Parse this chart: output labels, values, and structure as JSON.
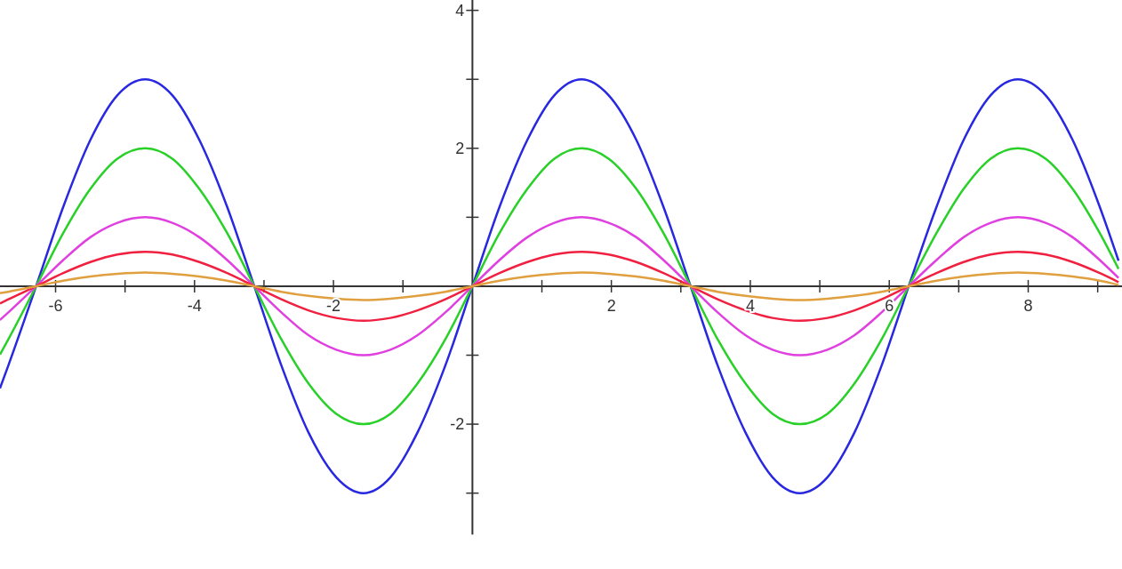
{
  "chart_data": {
    "type": "line",
    "x": [
      -6.8,
      -6.68,
      -6.28,
      -5.89,
      -5.5,
      -5.11,
      -4.71,
      -4.32,
      -3.93,
      -3.53,
      -3.14,
      -2.75,
      -2.36,
      -1.96,
      -1.57,
      -1.18,
      -0.79,
      -0.39,
      0,
      0.39,
      0.79,
      1.18,
      1.57,
      1.96,
      2.36,
      2.75,
      3.14,
      3.53,
      3.93,
      4.32,
      4.71,
      5.11,
      5.5,
      5.89,
      6.28,
      6.68,
      7.07,
      7.46,
      7.85,
      8.25,
      8.64,
      9.03,
      9.3
    ],
    "series": [
      {
        "color": "#2828e0",
        "values": [
          -1.48,
          -1.15,
          0,
          1.15,
          2.12,
          2.77,
          3,
          2.77,
          2.12,
          1.15,
          0,
          -1.15,
          -2.12,
          -2.77,
          -3,
          -2.77,
          -2.12,
          -1.15,
          0,
          1.15,
          2.12,
          2.77,
          3,
          2.77,
          2.12,
          1.15,
          0,
          -1.15,
          -2.12,
          -2.77,
          -3,
          -2.77,
          -2.12,
          -1.15,
          0,
          1.15,
          2.12,
          2.77,
          3,
          2.77,
          2.12,
          1.15,
          0.37
        ]
      },
      {
        "color": "#28d028",
        "values": [
          -0.99,
          -0.77,
          0,
          0.77,
          1.41,
          1.85,
          2,
          1.85,
          1.41,
          0.77,
          0,
          -0.77,
          -1.41,
          -1.85,
          -2,
          -1.85,
          -1.41,
          -0.77,
          0,
          0.77,
          1.41,
          1.85,
          2,
          1.85,
          1.41,
          0.77,
          0,
          -0.77,
          -1.41,
          -1.85,
          -2,
          -1.85,
          -1.41,
          -0.77,
          0,
          0.77,
          1.41,
          1.85,
          2,
          1.85,
          1.41,
          0.77,
          0.25
        ]
      },
      {
        "color": "#e040e0",
        "values": [
          -0.49,
          -0.38,
          0,
          0.38,
          0.71,
          0.92,
          1,
          0.92,
          0.71,
          0.38,
          0,
          -0.38,
          -0.71,
          -0.92,
          -1,
          -0.92,
          -0.71,
          -0.38,
          0,
          0.38,
          0.71,
          0.92,
          1,
          0.92,
          0.71,
          0.38,
          0,
          -0.38,
          -0.71,
          -0.92,
          -1,
          -0.92,
          -0.71,
          -0.38,
          0,
          0.38,
          0.71,
          0.92,
          1,
          0.92,
          0.71,
          0.38,
          0.12
        ]
      },
      {
        "color": "#f02040",
        "values": [
          -0.25,
          -0.19,
          0,
          0.19,
          0.35,
          0.46,
          0.5,
          0.46,
          0.35,
          0.19,
          0,
          -0.19,
          -0.35,
          -0.46,
          -0.5,
          -0.46,
          -0.35,
          -0.19,
          0,
          0.19,
          0.35,
          0.46,
          0.5,
          0.46,
          0.35,
          0.19,
          0,
          -0.19,
          -0.35,
          -0.46,
          -0.5,
          -0.46,
          -0.35,
          -0.19,
          0,
          0.19,
          0.35,
          0.46,
          0.5,
          0.46,
          0.35,
          0.19,
          0.06
        ]
      },
      {
        "color": "#e0a040",
        "values": [
          -0.1,
          -0.08,
          0,
          0.08,
          0.14,
          0.18,
          0.2,
          0.18,
          0.14,
          0.08,
          0,
          -0.08,
          -0.14,
          -0.18,
          -0.2,
          -0.18,
          -0.14,
          -0.08,
          0,
          0.08,
          0.14,
          0.18,
          0.2,
          0.18,
          0.14,
          0.08,
          0,
          -0.08,
          -0.14,
          -0.18,
          -0.2,
          -0.18,
          -0.14,
          -0.08,
          0,
          0.08,
          0.14,
          0.18,
          0.2,
          0.18,
          0.14,
          0.08,
          0.02
        ]
      }
    ],
    "xlim": [
      -6.8,
      9.35
    ],
    "ylim": [
      -4.1,
      4.15
    ],
    "xticks": [
      -6,
      {
        "value": -5,
        "label": null
      },
      -4,
      {
        "value": -3,
        "label": null
      },
      -2,
      {
        "value": -1,
        "label": null
      },
      {
        "value": 1,
        "label": null
      },
      2,
      {
        "value": 3,
        "label": null
      },
      4,
      {
        "value": 5,
        "label": null
      },
      6,
      {
        "value": 7,
        "label": null
      },
      8,
      {
        "value": 9,
        "label": null
      }
    ],
    "yticks": [
      {
        "value": -3,
        "label": null
      },
      -2,
      {
        "value": -1,
        "label": null
      },
      {
        "value": 1,
        "label": null
      },
      2,
      {
        "value": 3,
        "label": null
      },
      4
    ],
    "grid": false,
    "marker": "none",
    "line_style": "solid"
  }
}
